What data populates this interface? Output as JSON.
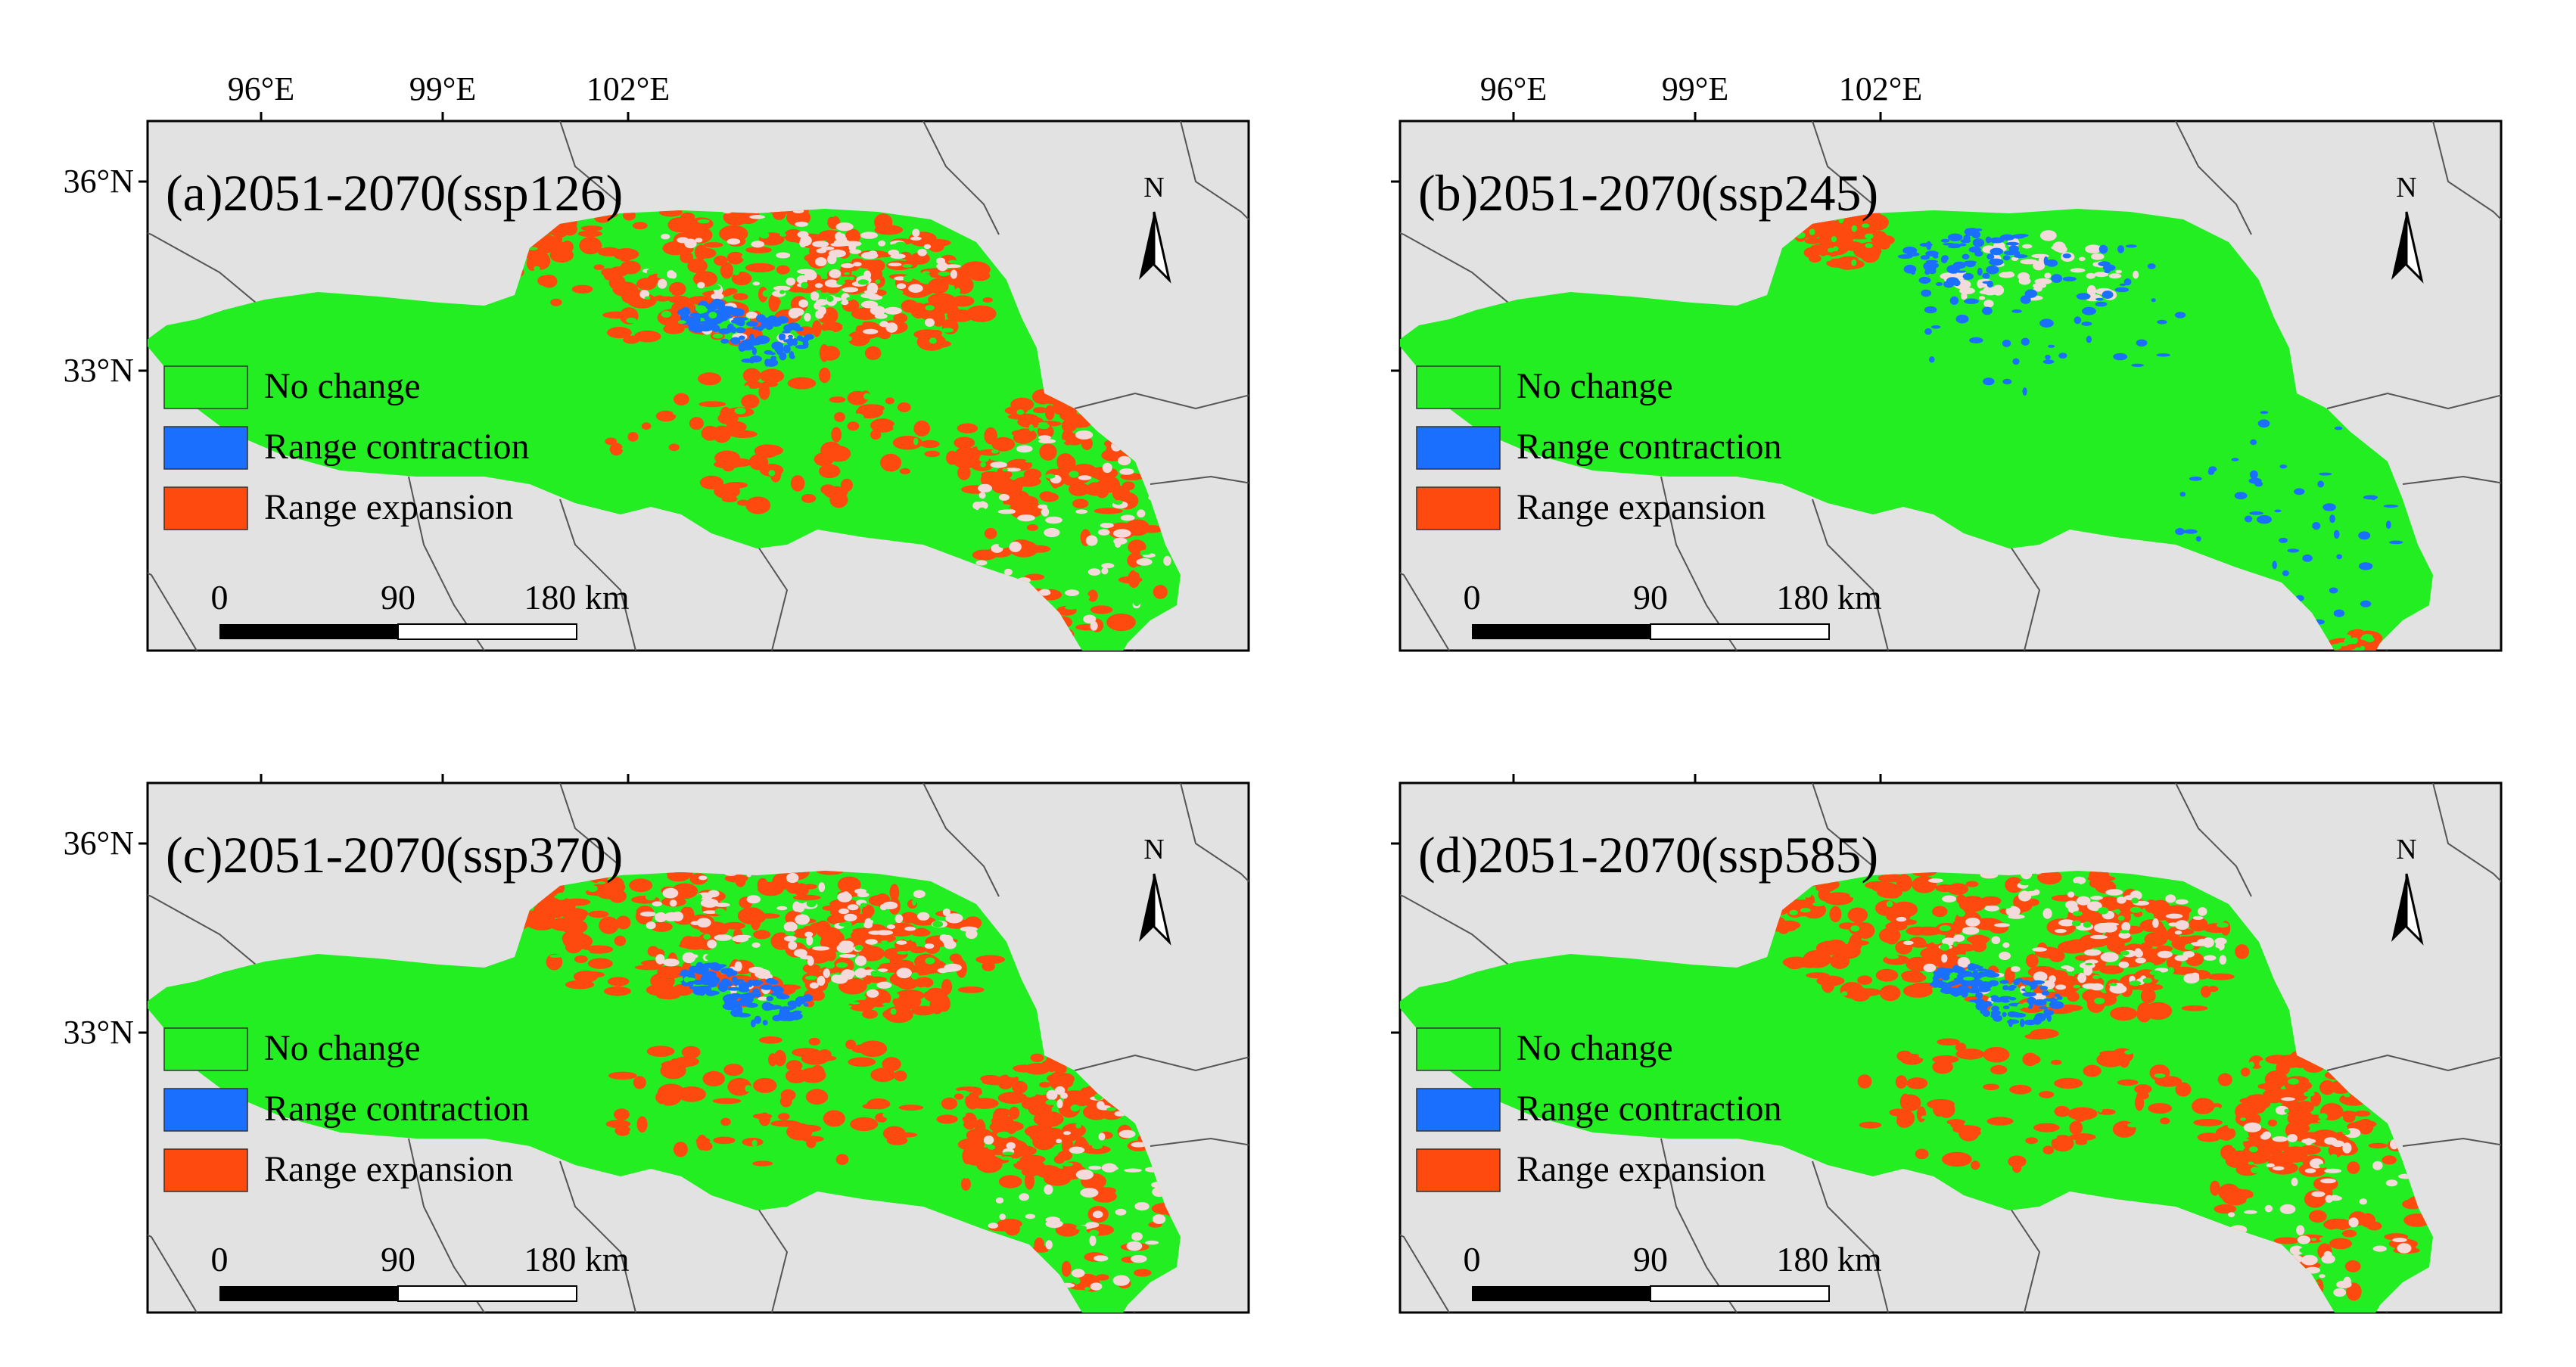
{
  "panels": [
    {
      "id": "a",
      "title": "(a)2051-2070(ssp126)",
      "scenario": "ssp126",
      "pattern": "expansion_heavy"
    },
    {
      "id": "b",
      "title": "(b)2051-2070(ssp245)",
      "scenario": "ssp245",
      "pattern": "contraction"
    },
    {
      "id": "c",
      "title": "(c)2051-2070(ssp370)",
      "scenario": "ssp370",
      "pattern": "expansion_heavy"
    },
    {
      "id": "d",
      "title": "(d)2051-2070(ssp585)",
      "scenario": "ssp585",
      "pattern": "expansion_heavy"
    }
  ],
  "axes": {
    "longitude_ticks": [
      "96°E",
      "99°E",
      "102°E"
    ],
    "latitude_ticks": [
      "36°N",
      "33°N"
    ]
  },
  "legend": [
    {
      "label": "No change",
      "color": "#22ee22"
    },
    {
      "label": "Range contraction",
      "color": "#1a6fff"
    },
    {
      "label": "Range expansion",
      "color": "#ff4a0f"
    }
  ],
  "scale_bar": {
    "labels": [
      "0",
      "90",
      "180 km"
    ]
  },
  "north_arrow": {
    "label": "N"
  },
  "colors": {
    "background": "#e2e2e2",
    "no_change": "#22ee22",
    "contraction": "#1a6fff",
    "expansion": "#ff4a0f",
    "unsuitable": "#f4dada",
    "boundary": "#555555"
  }
}
